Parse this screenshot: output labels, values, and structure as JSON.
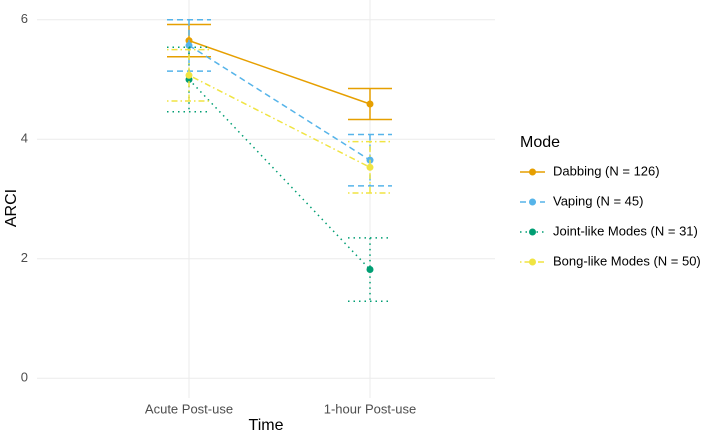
{
  "chart_data": {
    "type": "line",
    "x_label": "Time",
    "y_label": "ARCI",
    "categories": [
      "Acute Post-use",
      "1-hour Post-use"
    ],
    "ylim": [
      -0.33,
      6.33
    ],
    "yticks": [
      0,
      2,
      4,
      6
    ],
    "grid": true,
    "legend_title": "Mode",
    "legend_position": "right",
    "series": [
      {
        "name": "Dabbing (N = 126)",
        "color": "#E69F00",
        "dash": "solid",
        "values": [
          5.65,
          4.59
        ],
        "errors": [
          0.27,
          0.26
        ]
      },
      {
        "name": "Vaping (N = 45)",
        "color": "#56B4E9",
        "dash": "dashed",
        "values": [
          5.57,
          3.65
        ],
        "errors": [
          0.43,
          0.43
        ]
      },
      {
        "name": "Joint-like Modes (N = 31)",
        "color": "#009E73",
        "dash": "dotted",
        "values": [
          5.0,
          1.82
        ],
        "errors": [
          0.54,
          0.53
        ]
      },
      {
        "name": "Bong-like Modes (N = 50)",
        "color": "#F0E442",
        "dash": "dotdash",
        "values": [
          5.07,
          3.53
        ],
        "errors": [
          0.43,
          0.43
        ]
      }
    ]
  }
}
